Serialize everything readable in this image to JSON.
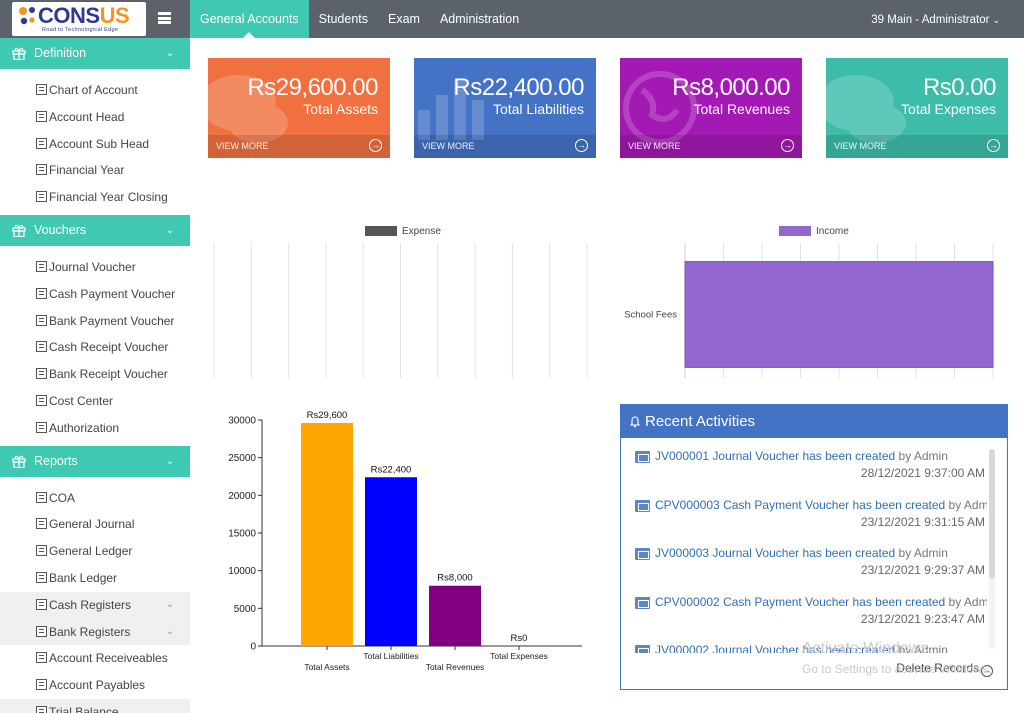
{
  "app": {
    "logo_text_main": "CONS",
    "logo_text_accent": "US",
    "logo_tagline": "Road to Technological Edge",
    "top_nav": [
      "General Accounts",
      "Students",
      "Exam",
      "Administration"
    ],
    "user_menu": "39 Main - Administrator"
  },
  "sidebar": {
    "sections": [
      {
        "title": "Definition",
        "items": [
          "Chart of Account",
          "Account Head",
          "Account Sub Head",
          "Financial Year",
          "Financial Year Closing"
        ]
      },
      {
        "title": "Vouchers",
        "items": [
          "Journal Voucher",
          "Cash Payment Voucher",
          "Bank Payment Voucher",
          "Cash Receipt Voucher",
          "Bank Receipt Voucher",
          "Cost Center",
          "Authorization"
        ]
      },
      {
        "title": "Reports",
        "items": [
          "COA",
          "General Journal",
          "General Ledger",
          "Bank Ledger",
          "Cash Registers",
          "Bank Registers",
          "Account Receiveables",
          "Account Payables",
          "Trial Balance"
        ]
      }
    ]
  },
  "cards": [
    {
      "amount": "Rs29,600.00",
      "label": "Total Assets",
      "more": "VIEW MORE",
      "color": "#f0703f"
    },
    {
      "amount": "Rs22,400.00",
      "label": "Total Liabilities",
      "more": "VIEW MORE",
      "color": "#4472c4"
    },
    {
      "amount": "Rs8,000.00",
      "label": "Total Revenues",
      "more": "VIEW MORE",
      "color": "#a319b3"
    },
    {
      "amount": "Rs0.00",
      "label": "Total Expenses",
      "more": "VIEW MORE",
      "color": "#3dbca9"
    }
  ],
  "chart_data": [
    {
      "type": "bar",
      "orientation": "horizontal",
      "legend": "Expense",
      "legend_color": "#555555",
      "categories": [],
      "values": [],
      "xlim": [
        0,
        1.0
      ],
      "x_ticks": [
        "0",
        "0.1",
        "0.2",
        "0.3",
        "0.4",
        "0.5",
        "0.6",
        "0.7",
        "0.8",
        "0.9",
        "1.0"
      ],
      "grid": true
    },
    {
      "type": "bar",
      "orientation": "horizontal",
      "legend": "Income",
      "legend_color": "#9466d0",
      "categories": [
        "School Fees"
      ],
      "values": [
        8000
      ],
      "xlim": [
        0,
        8000
      ],
      "x_ticks": [
        "0",
        "1,000",
        "2,000",
        "3,000",
        "4,000",
        "5,000",
        "6,000",
        "7,000",
        "8,000"
      ],
      "grid": true
    },
    {
      "type": "bar",
      "categories": [
        "Total Assets",
        "Total Liabilities",
        "Total Revenues",
        "Total Expenses"
      ],
      "values": [
        29600,
        22400,
        8000,
        0
      ],
      "data_labels": [
        "Rs29,600",
        "Rs22,400",
        "Rs8,000",
        "Rs0"
      ],
      "colors": [
        "#ffa500",
        "#0000ff",
        "#800080",
        "#00aa00"
      ],
      "ylim": [
        0,
        30000
      ],
      "y_ticks": [
        "0",
        "5000",
        "10000",
        "15000",
        "20000",
        "25000",
        "30000"
      ]
    }
  ],
  "activities": {
    "title": "Recent Activities",
    "items": [
      {
        "code": "JV000001",
        "text": "Journal Voucher has been created",
        "by": "by Admin",
        "date": "28/12/2021 9:37:00 AM"
      },
      {
        "code": "CPV000003",
        "text": "Cash Payment Voucher has been created",
        "by": "by Admin",
        "date": "23/12/2021 9:31:15 AM"
      },
      {
        "code": "JV000003",
        "text": "Journal Voucher has been created",
        "by": "by Admin",
        "date": "23/12/2021 9:29:37 AM"
      },
      {
        "code": "CPV000002",
        "text": "Cash Payment Voucher has been created",
        "by": "by Admin",
        "date": "23/12/2021 9:23:47 AM"
      },
      {
        "code": "JV000002",
        "text": "Journal Voucher has been created",
        "by": "by Admin",
        "date": ""
      }
    ],
    "footer": "Delete Records"
  },
  "watermark": {
    "line1": "Activate Windows",
    "line2": "Go to Settings to activate Windows."
  }
}
